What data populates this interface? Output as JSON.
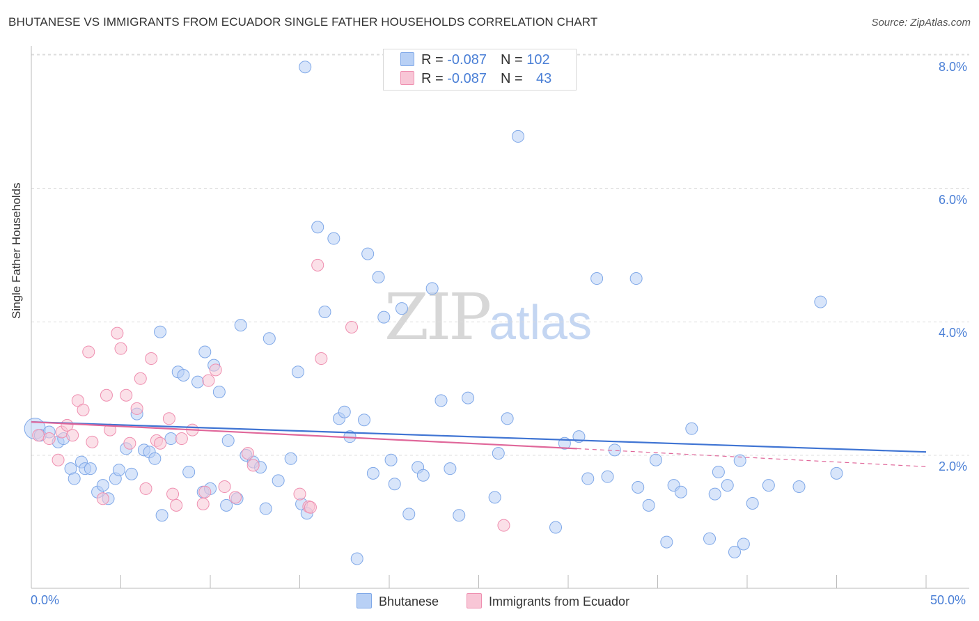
{
  "title": "BHUTANESE VS IMMIGRANTS FROM ECUADOR SINGLE FATHER HOUSEHOLDS CORRELATION CHART",
  "source": "Source: ZipAtlas.com",
  "watermark": {
    "zip": "ZIP",
    "atlas": "atlas"
  },
  "legend_top": {
    "rows": [
      {
        "r_label": "R = ",
        "r_value": "-0.087",
        "n_label": "N = ",
        "n_value": "102",
        "color": "#7fa8e8",
        "fill": "#b8d0f5"
      },
      {
        "r_label": "R = ",
        "r_value": "-0.087",
        "n_label": "N = ",
        "n_value": "43",
        "color": "#ef8fb0",
        "fill": "#f8c6d6"
      }
    ]
  },
  "chart_data": {
    "type": "scatter",
    "title": "BHUTANESE VS IMMIGRANTS FROM ECUADOR SINGLE FATHER HOUSEHOLDS CORRELATION CHART",
    "xlabel": "",
    "ylabel": "Single Father Households",
    "xlim": [
      0,
      50
    ],
    "ylim": [
      0,
      8.7
    ],
    "x_tick_labels": [
      "0.0%",
      "50.0%"
    ],
    "y_ticks": [
      2,
      4,
      6,
      8
    ],
    "y_tick_labels": [
      "2.0%",
      "4.0%",
      "6.0%",
      "8.0%"
    ],
    "grid": true,
    "legend_position": "bottom",
    "series": [
      {
        "name": "Bhutanese",
        "color": "#7fa8e8",
        "fill": "#b8d0f5",
        "trend": {
          "x": [
            0,
            50
          ],
          "y": [
            2.5,
            2.05
          ]
        },
        "points": [
          [
            0.2,
            2.4
          ],
          [
            0.5,
            2.3
          ],
          [
            1.0,
            2.35
          ],
          [
            1.5,
            2.2
          ],
          [
            1.8,
            2.25
          ],
          [
            2.2,
            1.8
          ],
          [
            2.4,
            1.65
          ],
          [
            2.8,
            1.9
          ],
          [
            3.0,
            1.8
          ],
          [
            3.3,
            1.8
          ],
          [
            3.7,
            1.45
          ],
          [
            4.0,
            1.55
          ],
          [
            4.3,
            1.35
          ],
          [
            4.7,
            1.65
          ],
          [
            4.9,
            1.78
          ],
          [
            5.3,
            2.1
          ],
          [
            5.6,
            1.72
          ],
          [
            5.9,
            2.62
          ],
          [
            6.3,
            2.08
          ],
          [
            6.6,
            2.05
          ],
          [
            6.9,
            1.95
          ],
          [
            7.2,
            3.85
          ],
          [
            7.3,
            1.1
          ],
          [
            7.8,
            2.25
          ],
          [
            8.2,
            3.25
          ],
          [
            8.5,
            3.2
          ],
          [
            8.8,
            1.75
          ],
          [
            9.3,
            3.1
          ],
          [
            9.6,
            1.45
          ],
          [
            9.7,
            3.55
          ],
          [
            10.0,
            1.5
          ],
          [
            10.2,
            3.35
          ],
          [
            10.5,
            2.95
          ],
          [
            10.9,
            1.25
          ],
          [
            11.0,
            2.22
          ],
          [
            11.5,
            1.35
          ],
          [
            11.7,
            3.95
          ],
          [
            12.0,
            2.0
          ],
          [
            12.4,
            1.9
          ],
          [
            12.8,
            1.82
          ],
          [
            13.1,
            1.2
          ],
          [
            13.3,
            3.75
          ],
          [
            13.8,
            1.62
          ],
          [
            14.5,
            1.95
          ],
          [
            14.9,
            3.25
          ],
          [
            15.1,
            1.27
          ],
          [
            15.4,
            1.13
          ],
          [
            15.3,
            7.82
          ],
          [
            16.0,
            5.42
          ],
          [
            16.4,
            4.15
          ],
          [
            16.9,
            5.25
          ],
          [
            17.2,
            2.55
          ],
          [
            17.5,
            2.65
          ],
          [
            17.8,
            2.28
          ],
          [
            18.2,
            0.45
          ],
          [
            18.6,
            2.53
          ],
          [
            18.8,
            5.02
          ],
          [
            19.1,
            1.73
          ],
          [
            19.4,
            4.67
          ],
          [
            19.7,
            4.07
          ],
          [
            20.1,
            1.93
          ],
          [
            20.3,
            1.57
          ],
          [
            20.7,
            4.2
          ],
          [
            21.1,
            1.12
          ],
          [
            21.6,
            1.82
          ],
          [
            21.9,
            1.7
          ],
          [
            22.4,
            4.5
          ],
          [
            22.9,
            2.82
          ],
          [
            23.4,
            1.8
          ],
          [
            23.9,
            1.1
          ],
          [
            24.4,
            2.86
          ],
          [
            25.9,
            1.37
          ],
          [
            26.1,
            2.03
          ],
          [
            26.6,
            2.55
          ],
          [
            27.2,
            6.78
          ],
          [
            29.3,
            0.92
          ],
          [
            29.8,
            2.18
          ],
          [
            30.6,
            2.28
          ],
          [
            31.1,
            1.65
          ],
          [
            31.6,
            4.65
          ],
          [
            32.2,
            1.68
          ],
          [
            32.6,
            2.08
          ],
          [
            33.9,
            1.52
          ],
          [
            33.8,
            4.65
          ],
          [
            34.5,
            1.25
          ],
          [
            34.9,
            1.93
          ],
          [
            35.5,
            0.7
          ],
          [
            35.9,
            1.55
          ],
          [
            36.3,
            1.45
          ],
          [
            36.9,
            2.4
          ],
          [
            37.9,
            0.75
          ],
          [
            38.2,
            1.42
          ],
          [
            38.4,
            1.75
          ],
          [
            38.9,
            1.55
          ],
          [
            39.3,
            0.55
          ],
          [
            39.6,
            1.92
          ],
          [
            39.8,
            0.67
          ],
          [
            40.3,
            1.28
          ],
          [
            41.2,
            1.55
          ],
          [
            42.9,
            1.53
          ],
          [
            44.1,
            4.3
          ],
          [
            45.0,
            1.73
          ]
        ]
      },
      {
        "name": "Immigrants from Ecuador",
        "color": "#ef8fb0",
        "fill": "#f8c6d6",
        "trend": {
          "x": [
            0,
            30.5
          ],
          "y": [
            2.5,
            2.1
          ]
        },
        "trend_dashed": {
          "x": [
            30.5,
            50
          ],
          "y": [
            2.1,
            1.83
          ]
        },
        "points": [
          [
            0.4,
            2.3
          ],
          [
            1.0,
            2.25
          ],
          [
            1.5,
            1.93
          ],
          [
            1.7,
            2.35
          ],
          [
            2.0,
            2.45
          ],
          [
            2.3,
            2.3
          ],
          [
            2.6,
            2.82
          ],
          [
            2.9,
            2.68
          ],
          [
            3.2,
            3.55
          ],
          [
            3.4,
            2.2
          ],
          [
            4.0,
            1.35
          ],
          [
            4.2,
            2.9
          ],
          [
            4.4,
            2.38
          ],
          [
            4.8,
            3.83
          ],
          [
            5.0,
            3.6
          ],
          [
            5.3,
            2.9
          ],
          [
            5.5,
            2.18
          ],
          [
            5.9,
            2.7
          ],
          [
            6.1,
            3.15
          ],
          [
            6.4,
            1.5
          ],
          [
            6.7,
            3.45
          ],
          [
            7.0,
            2.22
          ],
          [
            7.2,
            2.18
          ],
          [
            7.7,
            2.55
          ],
          [
            7.9,
            1.42
          ],
          [
            8.1,
            1.25
          ],
          [
            8.4,
            2.25
          ],
          [
            9.0,
            2.38
          ],
          [
            9.6,
            1.27
          ],
          [
            9.7,
            1.45
          ],
          [
            9.9,
            3.12
          ],
          [
            10.3,
            3.28
          ],
          [
            10.8,
            1.53
          ],
          [
            11.4,
            1.37
          ],
          [
            12.1,
            2.03
          ],
          [
            12.4,
            1.85
          ],
          [
            15.0,
            1.42
          ],
          [
            15.5,
            1.23
          ],
          [
            15.6,
            1.22
          ],
          [
            16.0,
            4.85
          ],
          [
            16.2,
            3.45
          ],
          [
            17.9,
            3.92
          ],
          [
            26.4,
            0.95
          ]
        ]
      }
    ]
  },
  "legend_bottom": [
    {
      "label": "Bhutanese",
      "color": "#7fa8e8",
      "fill": "#b8d0f5"
    },
    {
      "label": "Immigrants from Ecuador",
      "color": "#ef8fb0",
      "fill": "#f8c6d6"
    }
  ]
}
